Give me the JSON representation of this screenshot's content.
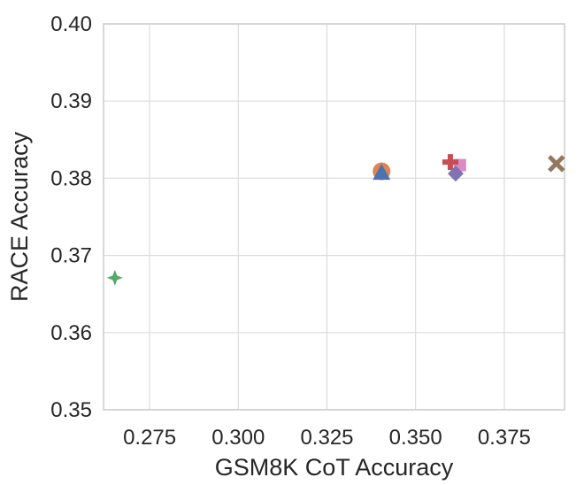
{
  "chart_data": {
    "type": "scatter",
    "title": "",
    "xlabel": "GSM8K CoT Accuracy",
    "ylabel": "RACE Accuracy",
    "xlim": [
      0.262,
      0.392
    ],
    "ylim": [
      0.35,
      0.4
    ],
    "xticks": [
      0.275,
      0.3,
      0.325,
      0.35,
      0.375
    ],
    "xtick_labels": [
      "0.275",
      "0.300",
      "0.325",
      "0.350",
      "0.375"
    ],
    "yticks": [
      0.35,
      0.36,
      0.37,
      0.38,
      0.39,
      0.4
    ],
    "ytick_labels": [
      "0.35",
      "0.36",
      "0.37",
      "0.38",
      "0.39",
      "0.40"
    ],
    "grid": true,
    "legend": "none",
    "points": [
      {
        "x": 0.2652,
        "y": 0.3671,
        "marker": "star4",
        "color": "#55a868"
      },
      {
        "x": 0.3404,
        "y": 0.3809,
        "marker": "circle",
        "color": "#dd8452"
      },
      {
        "x": 0.3404,
        "y": 0.3806,
        "marker": "triangle",
        "color": "#4c72b0"
      },
      {
        "x": 0.3625,
        "y": 0.3817,
        "marker": "square",
        "color": "#da8bc3"
      },
      {
        "x": 0.3598,
        "y": 0.3821,
        "marker": "plus",
        "color": "#c44e52"
      },
      {
        "x": 0.3613,
        "y": 0.3806,
        "marker": "diamond",
        "color": "#8172b3"
      },
      {
        "x": 0.3897,
        "y": 0.3819,
        "marker": "x",
        "color": "#937860"
      }
    ]
  }
}
